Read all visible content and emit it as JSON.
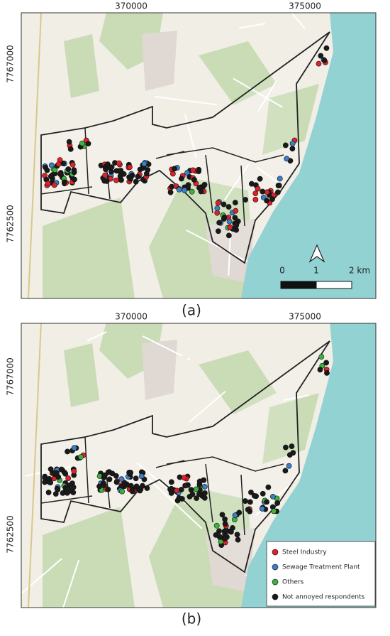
{
  "panels": [
    {
      "label": "(a)",
      "x_ticks": [
        "370000",
        "375000"
      ],
      "y_ticks": [
        "7767000",
        "7762500"
      ],
      "scale_bar": {
        "labels": [
          "0",
          "1",
          "2 km"
        ]
      }
    },
    {
      "label": "(b)",
      "x_ticks": [
        "370000",
        "375000"
      ],
      "y_ticks": [
        "7767000",
        "7762500"
      ],
      "legend": [
        {
          "name": "Steel Industry",
          "color": "#e0202a"
        },
        {
          "name": "Sewage Treatment Plant",
          "color": "#3a7fc8"
        },
        {
          "name": "Others",
          "color": "#3cb43c"
        },
        {
          "name": "Not annoyed respondents",
          "color": "#1a1a1a"
        }
      ]
    }
  ]
}
